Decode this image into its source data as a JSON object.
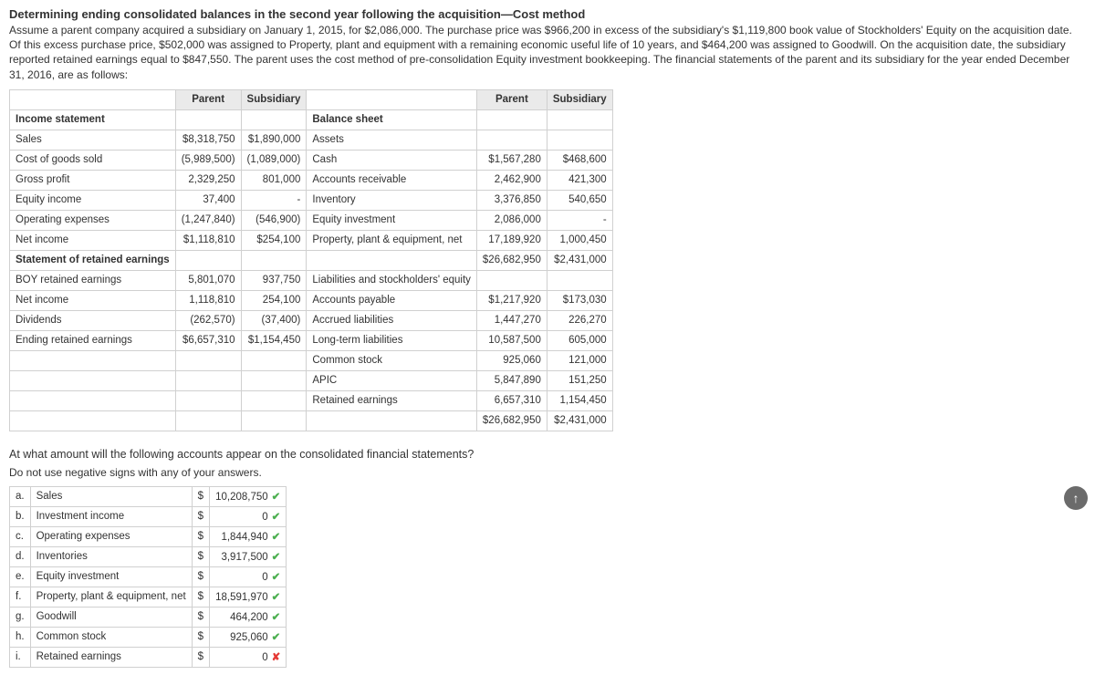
{
  "title": "Determining ending consolidated balances in the second year following the acquisition—Cost method",
  "intro": "Assume a parent company acquired a subsidiary on January 1, 2015, for $2,086,000. The purchase price was $966,200 in excess of the subsidiary's $1,119,800 book value of Stockholders' Equity on the acquisition date. Of this excess purchase price, $502,000 was assigned to Property, plant and equipment with a remaining economic useful life of 10 years, and $464,200 was assigned to Goodwill. On the acquisition date, the subsidiary reported retained earnings equal to $847,550. The parent uses the cost method of pre-consolidation Equity investment bookkeeping. The financial statements of the parent and its subsidiary for the year ended December 31, 2016, are as follows:",
  "headers": {
    "parentL": "Parent",
    "subsidiaryL": "Subsidiary",
    "parentR": "Parent",
    "subsidiaryR": "Subsidiary"
  },
  "left": {
    "incomeStatement": "Income statement",
    "balanceSheet": "Balance sheet",
    "sales": "Sales",
    "salesP": "$8,318,750",
    "salesS": "$1,890,000",
    "assets": "Assets",
    "cogs": "Cost of goods sold",
    "cogsP": "(5,989,500)",
    "cogsS": "(1,089,000)",
    "cash": "Cash",
    "cashP": "$1,567,280",
    "cashS": "$468,600",
    "gross": "Gross profit",
    "grossP": "2,329,250",
    "grossS": "801,000",
    "ar": "Accounts receivable",
    "arP": "2,462,900",
    "arS": "421,300",
    "eqinc": "Equity income",
    "eqincP": "37,400",
    "eqincS": "-",
    "inv": "Inventory",
    "invP": "3,376,850",
    "invS": "540,650",
    "opex": "Operating expenses",
    "opexP": "(1,247,840)",
    "opexS": "(546,900)",
    "eqinv": "Equity investment",
    "eqinvP": "2,086,000",
    "eqinvS": "-",
    "ni": "Net income",
    "niP": "$1,118,810",
    "niS": "$254,100",
    "ppe": "Property, plant & equipment, net",
    "ppeP": "17,189,920",
    "ppeS": "1,000,450",
    "totAP": "$26,682,950",
    "totAS": "$2,431,000",
    "sre": "Statement of retained earnings",
    "boy": "BOY retained earnings",
    "boyP": "5,801,070",
    "boyS": "937,750",
    "lse": "Liabilities and stockholders' equity",
    "ni2": "Net income",
    "ni2P": "1,118,810",
    "ni2S": "254,100",
    "ap": "Accounts payable",
    "apP": "$1,217,920",
    "apS": "$173,030",
    "div": "Dividends",
    "divP": "(262,570)",
    "divS": "(37,400)",
    "al": "Accrued liabilities",
    "alP": "1,447,270",
    "alS": "226,270",
    "ere": "Ending retained earnings",
    "ereP": "$6,657,310",
    "ereS": "$1,154,450",
    "ltl": "Long-term liabilities",
    "ltlP": "10,587,500",
    "ltlS": "605,000",
    "cs": "Common stock",
    "csP": "925,060",
    "csS": "121,000",
    "apic": "APIC",
    "apicP": "5,847,890",
    "apicS": "151,250",
    "re": "Retained earnings",
    "reP": "6,657,310",
    "reS": "1,154,450",
    "totLP": "$26,682,950",
    "totLS": "$2,431,000"
  },
  "question": "At what amount will the following accounts appear on the consolidated financial statements?",
  "note": "Do not use negative signs with any of your answers.",
  "ans": {
    "a": {
      "k": "a.",
      "l": "Sales",
      "c": "$",
      "v": "10,208,750",
      "m": "✔"
    },
    "b": {
      "k": "b.",
      "l": "Investment income",
      "c": "$",
      "v": "0",
      "m": "✔"
    },
    "c": {
      "k": "c.",
      "l": "Operating expenses",
      "c": "$",
      "v": "1,844,940",
      "m": "✔"
    },
    "d": {
      "k": "d.",
      "l": "Inventories",
      "c": "$",
      "v": "3,917,500",
      "m": "✔"
    },
    "e": {
      "k": "e.",
      "l": "Equity investment",
      "c": "$",
      "v": "0",
      "m": "✔"
    },
    "f": {
      "k": "f.",
      "l": "Property, plant & equipment, net",
      "c": "$",
      "v": "18,591,970",
      "m": "✔"
    },
    "g": {
      "k": "g.",
      "l": "Goodwill",
      "c": "$",
      "v": "464,200",
      "m": "✔"
    },
    "h": {
      "k": "h.",
      "l": "Common stock",
      "c": "$",
      "v": "925,060",
      "m": "✔"
    },
    "i": {
      "k": "i.",
      "l": "Retained earnings",
      "c": "$",
      "v": "0",
      "m": "✘"
    }
  },
  "fab": "↑"
}
